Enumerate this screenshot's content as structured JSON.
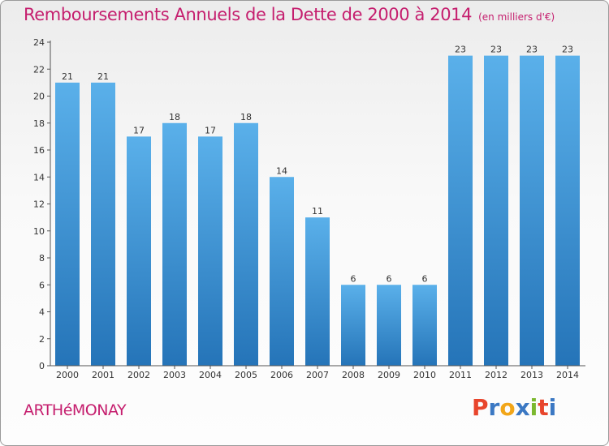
{
  "header": {
    "title": "Remboursements Annuels de la Dette de 2000 à 2014",
    "unit": "(en milliers d'€)"
  },
  "footer": {
    "commune": "ARTHéMONAY",
    "logo": "Proxiti"
  },
  "colors": {
    "title": "#c51e6e",
    "bar_light": "#5ab0ea",
    "bar_dark": "#2574b8",
    "logo_letters": [
      "#e8452c",
      "#3b78c3",
      "#f2a619",
      "#3b78c3",
      "#7cb82f",
      "#e8452c",
      "#3b78c3"
    ]
  },
  "chart_data": {
    "type": "bar",
    "title": "Remboursements Annuels de la Dette de 2000 à 2014",
    "xlabel": "",
    "ylabel": "",
    "categories": [
      "2000",
      "2001",
      "2002",
      "2003",
      "2004",
      "2005",
      "2006",
      "2007",
      "2008",
      "2009",
      "2010",
      "2011",
      "2012",
      "2013",
      "2014"
    ],
    "values": [
      21,
      21,
      17,
      18,
      17,
      18,
      14,
      11,
      6,
      6,
      6,
      23,
      23,
      23,
      23
    ],
    "ylim": [
      0,
      24
    ],
    "yticks": [
      0,
      2,
      4,
      6,
      8,
      10,
      12,
      14,
      16,
      18,
      20,
      22,
      24
    ],
    "grid": false,
    "legend": "none"
  }
}
